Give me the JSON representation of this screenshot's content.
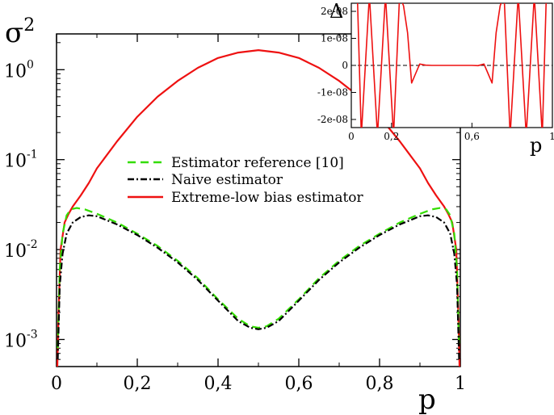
{
  "chart_data": [
    {
      "type": "line",
      "title": "",
      "xlabel": "p",
      "ylabel": "σ2",
      "xlim": [
        0,
        1
      ],
      "ylim": [
        0.0005,
        2.5
      ],
      "yscale": "log",
      "grid": false,
      "legend_position": "center-left",
      "x_ticks": [
        "0",
        "0,2",
        "0,4",
        "0,6",
        "0,8",
        "1"
      ],
      "y_ticks": [
        {
          "value": 0.001,
          "mantissa": "10",
          "exp": "-3"
        },
        {
          "value": 0.01,
          "mantissa": "10",
          "exp": "-2"
        },
        {
          "value": 0.1,
          "mantissa": "10",
          "exp": "-1"
        },
        {
          "value": 1,
          "mantissa": "10",
          "exp": "0"
        }
      ],
      "series": [
        {
          "name": "Estimator reference [10]",
          "color": "#33dd00",
          "style": "dashed",
          "x": [
            0.003,
            0.008,
            0.015,
            0.025,
            0.035,
            0.05,
            0.07,
            0.1,
            0.15,
            0.2,
            0.25,
            0.3,
            0.35,
            0.4,
            0.45,
            0.48,
            0.5,
            0.52,
            0.55,
            0.6,
            0.65,
            0.7,
            0.75,
            0.8,
            0.85,
            0.9,
            0.93,
            0.95,
            0.965,
            0.975,
            0.985,
            0.992,
            0.997
          ],
          "y": [
            0.0008,
            0.006,
            0.015,
            0.024,
            0.028,
            0.029,
            0.028,
            0.025,
            0.02,
            0.015,
            0.011,
            0.0075,
            0.0048,
            0.0028,
            0.0017,
            0.0014,
            0.00135,
            0.0014,
            0.0017,
            0.0028,
            0.0048,
            0.0075,
            0.011,
            0.015,
            0.02,
            0.025,
            0.028,
            0.029,
            0.028,
            0.024,
            0.015,
            0.006,
            0.0008
          ]
        },
        {
          "name": "Naive estimator",
          "color": "#000000",
          "style": "dash-dot",
          "x": [
            0.003,
            0.008,
            0.015,
            0.025,
            0.04,
            0.06,
            0.08,
            0.1,
            0.15,
            0.2,
            0.25,
            0.3,
            0.35,
            0.4,
            0.45,
            0.48,
            0.5,
            0.52,
            0.55,
            0.6,
            0.65,
            0.7,
            0.75,
            0.8,
            0.85,
            0.9,
            0.92,
            0.94,
            0.96,
            0.975,
            0.985,
            0.992,
            0.997
          ],
          "y": [
            0.0006,
            0.004,
            0.009,
            0.015,
            0.02,
            0.023,
            0.024,
            0.0235,
            0.019,
            0.0145,
            0.0105,
            0.0072,
            0.0046,
            0.0027,
            0.0016,
            0.00135,
            0.0013,
            0.00135,
            0.0016,
            0.0027,
            0.0046,
            0.0072,
            0.0105,
            0.0145,
            0.019,
            0.0235,
            0.024,
            0.023,
            0.02,
            0.015,
            0.009,
            0.004,
            0.0006
          ]
        },
        {
          "name": "Extreme-low bias estimator",
          "color": "#ee1111",
          "style": "solid",
          "x": [
            0.002,
            0.005,
            0.01,
            0.02,
            0.03,
            0.04,
            0.06,
            0.08,
            0.1,
            0.15,
            0.2,
            0.25,
            0.3,
            0.35,
            0.4,
            0.45,
            0.5,
            0.55,
            0.6,
            0.65,
            0.7,
            0.75,
            0.8,
            0.85,
            0.9,
            0.92,
            0.94,
            0.96,
            0.97,
            0.98,
            0.99,
            0.995,
            0.998
          ],
          "y": [
            0.0005,
            0.002,
            0.01,
            0.02,
            0.025,
            0.03,
            0.04,
            0.055,
            0.08,
            0.16,
            0.3,
            0.5,
            0.75,
            1.05,
            1.35,
            1.55,
            1.65,
            1.55,
            1.35,
            1.05,
            0.75,
            0.5,
            0.3,
            0.16,
            0.08,
            0.055,
            0.04,
            0.03,
            0.025,
            0.02,
            0.01,
            0.002,
            0.0005
          ]
        }
      ]
    },
    {
      "type": "line",
      "title": "",
      "xlabel": "p",
      "ylabel": "Δ",
      "xlim": [
        0,
        1
      ],
      "ylim": [
        -2.3e-08,
        2.3e-08
      ],
      "grid": false,
      "x_ticks": [
        "0",
        "0,2",
        "0,6",
        "1"
      ],
      "y_ticks": [
        "2e-08",
        "1e-08",
        "0",
        "-1e-08",
        "-2e-08"
      ],
      "reference_line": {
        "y": 0,
        "style": "dashed",
        "color": "#000000"
      },
      "series": [
        {
          "color": "#ee1111",
          "style": "solid",
          "x": [
            0.03,
            0.05,
            0.09,
            0.13,
            0.17,
            0.21,
            0.24,
            0.26,
            0.28,
            0.3,
            0.32,
            0.34,
            0.37,
            0.4,
            0.43,
            0.46,
            0.5,
            0.54,
            0.57,
            0.6,
            0.63,
            0.66,
            0.68,
            0.7,
            0.72,
            0.74,
            0.76,
            0.79,
            0.83,
            0.87,
            0.91,
            0.95,
            0.97
          ],
          "y": [
            2.6e-08,
            -2.6e-08,
            2.6e-08,
            -2.6e-08,
            2.6e-08,
            -2.6e-08,
            2.6e-08,
            2.2e-08,
            1.2e-08,
            -6.5e-09,
            -3e-09,
            5e-10,
            1e-10,
            0,
            0,
            0,
            0,
            0,
            0,
            0,
            -1e-10,
            5e-10,
            -3e-09,
            -6.5e-09,
            1.2e-08,
            2.2e-08,
            2.6e-08,
            -2.6e-08,
            2.6e-08,
            -2.6e-08,
            2.6e-08,
            -2.6e-08,
            2.6e-08
          ]
        }
      ]
    }
  ]
}
